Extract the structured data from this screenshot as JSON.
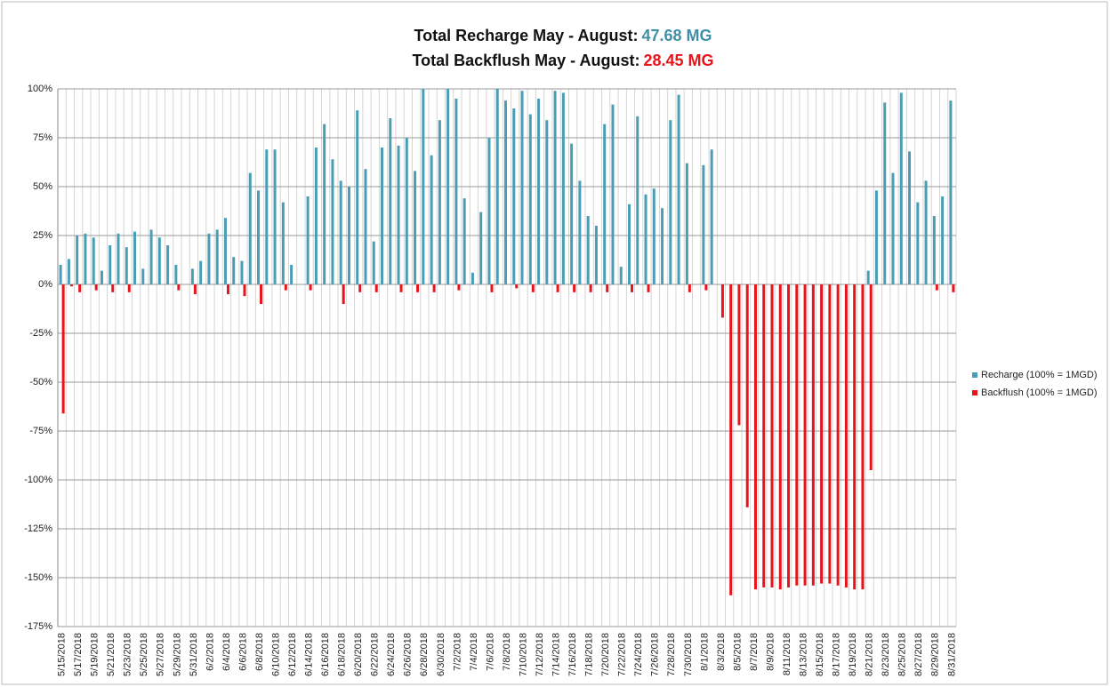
{
  "chart_data": {
    "type": "bar",
    "title_lines": [
      {
        "text": "Total Recharge May - August:",
        "value": "47.68 MG",
        "color": "#3f8fa8"
      },
      {
        "text": "Total Backflush May - August:",
        "value": "28.45 MG",
        "color": "#e8141b"
      }
    ],
    "categories": [
      "5/15/2018",
      null,
      "5/17/2018",
      null,
      "5/19/2018",
      null,
      "5/21/2018",
      null,
      "5/23/2018",
      null,
      "5/25/2018",
      null,
      "5/27/2018",
      null,
      "5/29/2018",
      null,
      "5/31/2018",
      null,
      "6/2/2018",
      null,
      "6/4/2018",
      null,
      "6/6/2018",
      null,
      "6/8/2018",
      null,
      "6/10/2018",
      null,
      "6/12/2018",
      null,
      "6/14/2018",
      null,
      "6/16/2018",
      null,
      "6/18/2018",
      null,
      "6/20/2018",
      null,
      "6/22/2018",
      null,
      "6/24/2018",
      null,
      "6/26/2018",
      null,
      "6/28/2018",
      null,
      "6/30/2018",
      null,
      "7/2/2018",
      null,
      "7/4/2018",
      null,
      "7/6/2018",
      null,
      "7/8/2018",
      null,
      "7/10/2018",
      null,
      "7/12/2018",
      null,
      "7/14/2018",
      null,
      "7/16/2018",
      null,
      "7/18/2018",
      null,
      "7/20/2018",
      null,
      "7/22/2018",
      null,
      "7/24/2018",
      null,
      "7/26/2018",
      null,
      "7/28/2018",
      null,
      "7/30/2018",
      null,
      "8/1/2018",
      null,
      "8/3/2018",
      null,
      "8/5/2018",
      null,
      "8/7/2018",
      null,
      "8/9/2018",
      null,
      "8/11/2018",
      null,
      "8/13/2018",
      null,
      "8/15/2018",
      null,
      "8/17/2018",
      null,
      "8/19/2018",
      null,
      "8/21/2018",
      null,
      "8/23/2018",
      null,
      "8/25/2018",
      null,
      "8/27/2018",
      null,
      "8/29/2018",
      null,
      "8/31/2018"
    ],
    "series": [
      {
        "name": "Recharge (100% = 1MGD)",
        "color": "#4a9db5",
        "values": [
          10,
          13,
          25,
          26,
          24,
          7,
          20,
          26,
          19,
          27,
          8,
          28,
          24,
          20,
          10,
          0,
          8,
          12,
          26,
          28,
          34,
          14,
          12,
          57,
          48,
          69,
          69,
          42,
          10,
          0,
          45,
          70,
          82,
          64,
          53,
          50,
          89,
          59,
          22,
          70,
          85,
          71,
          75,
          58,
          100,
          66,
          84,
          100,
          95,
          44,
          6,
          37,
          75,
          100,
          94,
          90,
          99,
          87,
          95,
          84,
          99,
          98,
          72,
          53,
          35,
          30,
          82,
          92,
          9,
          41,
          86,
          46,
          49,
          39,
          84,
          97,
          62,
          0,
          61,
          69,
          0,
          0,
          0,
          0,
          0,
          0,
          0,
          0,
          0,
          0,
          0,
          0,
          0,
          0,
          0,
          0,
          0,
          0,
          7,
          48,
          93,
          57,
          98,
          68,
          42,
          53,
          35,
          45,
          94
        ]
      },
      {
        "name": "Backflush (100% = 1MGD)",
        "color": "#e8141b",
        "values": [
          -66,
          -1,
          -4,
          0,
          -3,
          0,
          -4,
          0,
          -4,
          0,
          0,
          0,
          0,
          0,
          -3,
          0,
          -5,
          0,
          0,
          0,
          -5,
          0,
          -6,
          0,
          -10,
          0,
          0,
          -3,
          0,
          0,
          -3,
          0,
          0,
          0,
          -10,
          0,
          -4,
          0,
          -4,
          0,
          0,
          -4,
          0,
          -4,
          0,
          -4,
          0,
          0,
          -3,
          0,
          0,
          0,
          -4,
          0,
          0,
          -2,
          0,
          -4,
          0,
          0,
          -4,
          0,
          -4,
          0,
          -4,
          0,
          -4,
          0,
          0,
          -4,
          0,
          -4,
          0,
          0,
          0,
          0,
          -4,
          0,
          -3,
          0,
          -17,
          -159,
          -72,
          -114,
          -156,
          -155,
          -155,
          -156,
          -155,
          -154,
          -154,
          -154,
          -153,
          -153,
          -154,
          -155,
          -156,
          -156,
          -95,
          0,
          0,
          0,
          0,
          0,
          0,
          0,
          -3,
          0,
          -4
        ]
      }
    ],
    "ylim": [
      -175,
      100
    ],
    "yticks": [
      {
        "value": -175,
        "label": "-175%"
      },
      {
        "value": -150,
        "label": "-150%"
      },
      {
        "value": -125,
        "label": "-125%"
      },
      {
        "value": -100,
        "label": "-100%"
      },
      {
        "value": -75,
        "label": "-75%"
      },
      {
        "value": -50,
        "label": "-50%"
      },
      {
        "value": -25,
        "label": "-25%"
      },
      {
        "value": 0,
        "label": "0%"
      },
      {
        "value": 25,
        "label": "25%"
      },
      {
        "value": 50,
        "label": "50%"
      },
      {
        "value": 75,
        "label": "75%"
      },
      {
        "value": 100,
        "label": "100%"
      }
    ],
    "grid": true,
    "legend": "right"
  }
}
